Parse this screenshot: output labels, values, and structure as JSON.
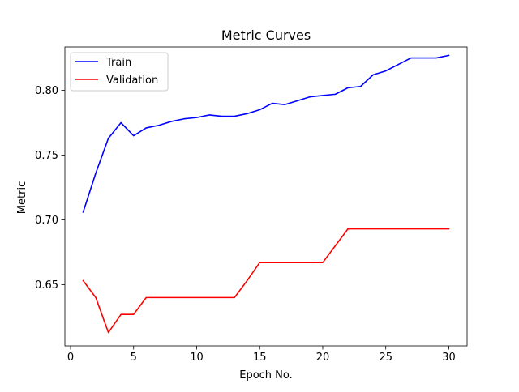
{
  "chart_data": {
    "type": "line",
    "title": "Metric Curves",
    "xlabel": "Epoch No.",
    "ylabel": "Metric",
    "xlim": [
      -0.45,
      31.45
    ],
    "ylim": [
      0.6027,
      0.8335
    ],
    "xticks": [
      0,
      5,
      10,
      15,
      20,
      25,
      30
    ],
    "xtick_labels": [
      "0",
      "5",
      "10",
      "15",
      "20",
      "25",
      "30"
    ],
    "yticks": [
      0.65,
      0.7,
      0.75,
      0.8
    ],
    "ytick_labels": [
      "0.65",
      "0.70",
      "0.75",
      "0.80"
    ],
    "grid": false,
    "legend_position": "top-left",
    "x": [
      1,
      2,
      3,
      4,
      5,
      6,
      7,
      8,
      9,
      10,
      11,
      12,
      13,
      14,
      15,
      16,
      17,
      18,
      19,
      20,
      21,
      22,
      23,
      24,
      25,
      26,
      27,
      28,
      29,
      30
    ],
    "series": [
      {
        "name": "Train",
        "color": "#0000ff",
        "values": [
          0.706,
          0.736,
          0.763,
          0.775,
          0.765,
          0.771,
          0.773,
          0.776,
          0.778,
          0.779,
          0.781,
          0.78,
          0.78,
          0.782,
          0.785,
          0.79,
          0.789,
          0.792,
          0.795,
          0.796,
          0.797,
          0.802,
          0.803,
          0.812,
          0.815,
          0.82,
          0.825,
          0.825,
          0.825,
          0.827
        ]
      },
      {
        "name": "Validation",
        "color": "#ff0000",
        "values": [
          0.653,
          0.64,
          0.613,
          0.627,
          0.627,
          0.64,
          0.64,
          0.64,
          0.64,
          0.64,
          0.64,
          0.64,
          0.64,
          0.653,
          0.667,
          0.667,
          0.667,
          0.667,
          0.667,
          0.667,
          0.68,
          0.693,
          0.693,
          0.693,
          0.693,
          0.693,
          0.693,
          0.693,
          0.693,
          0.693
        ]
      }
    ]
  }
}
